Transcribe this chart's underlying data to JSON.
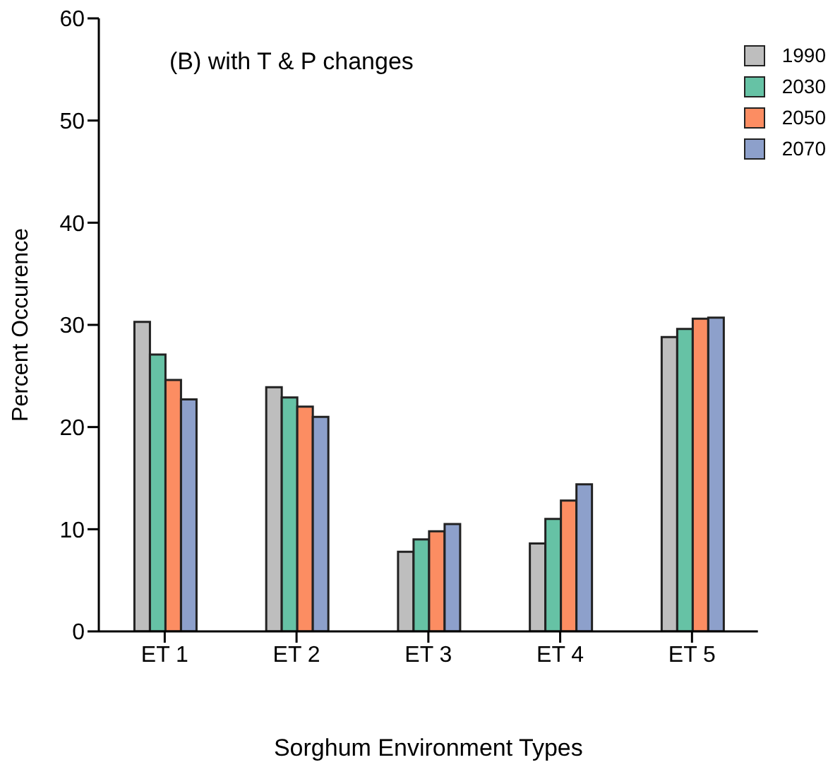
{
  "chart_data": {
    "type": "bar",
    "xlabel": "Sorghum Environment Types",
    "ylabel": "Percent Occurence",
    "annotations": [
      "(B) with T & P changes"
    ],
    "categories": [
      "ET 1",
      "ET 2",
      "ET 3",
      "ET 4",
      "ET 5"
    ],
    "series": [
      {
        "name": "1990",
        "color": "#bebebe",
        "values": [
          30.3,
          23.9,
          7.8,
          8.6,
          28.8
        ]
      },
      {
        "name": "2030",
        "color": "#66c2a5",
        "values": [
          27.1,
          22.9,
          9.0,
          11.0,
          29.6
        ]
      },
      {
        "name": "2050",
        "color": "#fc8d62",
        "values": [
          24.6,
          22.0,
          9.8,
          12.8,
          30.6
        ]
      },
      {
        "name": "2070",
        "color": "#8da0cb",
        "values": [
          22.7,
          21.0,
          10.5,
          14.4,
          30.7
        ]
      }
    ],
    "ylim": [
      0,
      60
    ],
    "yticks": [
      0,
      10,
      20,
      30,
      40,
      50,
      60
    ],
    "grid": false,
    "legend": "top right"
  }
}
